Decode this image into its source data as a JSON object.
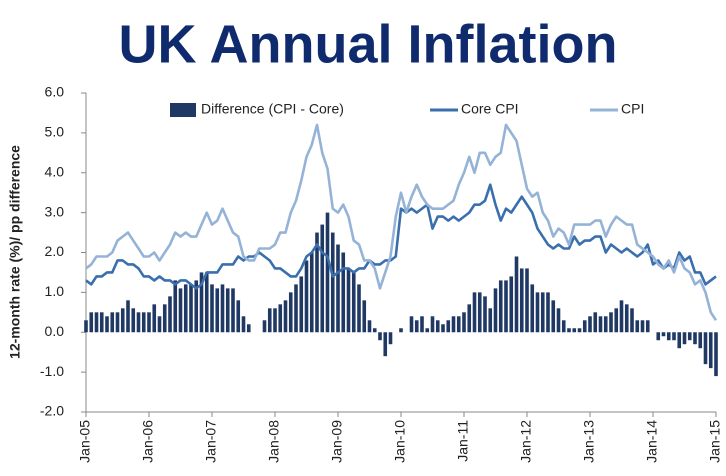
{
  "chart_data": {
    "type": "bar_line",
    "title": "UK Annual Inflation",
    "y_label": "12-month rate (%)/ pp difference",
    "categories": [
      "Jan-05",
      null,
      null,
      null,
      null,
      null,
      null,
      null,
      null,
      null,
      null,
      null,
      "Jan-06",
      null,
      null,
      null,
      null,
      null,
      null,
      null,
      null,
      null,
      null,
      null,
      "Jan-07",
      null,
      null,
      null,
      null,
      null,
      null,
      null,
      null,
      null,
      null,
      null,
      "Jan-08",
      null,
      null,
      null,
      null,
      null,
      null,
      null,
      null,
      null,
      null,
      null,
      "Jan-09",
      null,
      null,
      null,
      null,
      null,
      null,
      null,
      null,
      null,
      null,
      null,
      "Jan-10",
      null,
      null,
      null,
      null,
      null,
      null,
      null,
      null,
      null,
      null,
      null,
      "Jan-11",
      null,
      null,
      null,
      null,
      null,
      null,
      null,
      null,
      null,
      null,
      null,
      "Jan-12",
      null,
      null,
      null,
      null,
      null,
      null,
      null,
      null,
      null,
      null,
      null,
      "Jan-13",
      null,
      null,
      null,
      null,
      null,
      null,
      null,
      null,
      null,
      null,
      null,
      "Jan-14",
      null,
      null,
      null,
      null,
      null,
      null,
      null,
      null,
      null,
      null,
      null,
      "Jan-15"
    ],
    "series": [
      {
        "name": "Difference (CPI - Core)",
        "kind": "bar",
        "color": "#1f3864",
        "values": [
          0.3,
          0.5,
          0.5,
          0.5,
          0.4,
          0.5,
          0.5,
          0.6,
          0.8,
          0.6,
          0.5,
          0.5,
          0.5,
          0.7,
          0.4,
          0.7,
          0.9,
          1.3,
          1.1,
          1.2,
          1.2,
          1.3,
          1.5,
          1.5,
          1.2,
          1.1,
          1.2,
          1.1,
          1.1,
          0.8,
          0.4,
          0.2,
          0.0,
          0.0,
          0.3,
          0.6,
          0.6,
          0.7,
          0.8,
          1.0,
          1.2,
          1.4,
          1.8,
          2.0,
          2.5,
          2.7,
          3.0,
          2.5,
          2.2,
          2.0,
          1.6,
          1.5,
          1.2,
          0.8,
          0.3,
          0.1,
          -0.2,
          -0.6,
          -0.3,
          0.0,
          0.1,
          0.0,
          0.4,
          0.3,
          0.4,
          0.1,
          0.4,
          0.3,
          0.2,
          0.3,
          0.4,
          0.4,
          0.5,
          0.7,
          1.0,
          1.0,
          0.9,
          0.6,
          1.1,
          1.3,
          1.3,
          1.4,
          1.9,
          1.6,
          1.6,
          1.2,
          1.0,
          1.0,
          1.0,
          0.8,
          0.6,
          0.3,
          0.1,
          0.1,
          0.1,
          0.3,
          0.4,
          0.5,
          0.4,
          0.4,
          0.5,
          0.6,
          0.8,
          0.7,
          0.6,
          0.3,
          0.3,
          0.3,
          0.0,
          -0.2,
          -0.1,
          -0.2,
          -0.2,
          -0.4,
          -0.3,
          -0.2,
          -0.3,
          -0.4,
          -0.8,
          -0.9,
          -1.1
        ]
      },
      {
        "name": "Core CPI",
        "kind": "line",
        "color": "#3a6fad",
        "values": [
          1.3,
          1.2,
          1.4,
          1.4,
          1.5,
          1.5,
          1.8,
          1.8,
          1.7,
          1.7,
          1.6,
          1.4,
          1.4,
          1.3,
          1.4,
          1.3,
          1.3,
          1.2,
          1.3,
          1.3,
          1.2,
          1.1,
          1.2,
          1.5,
          1.5,
          1.5,
          1.7,
          1.7,
          1.7,
          1.9,
          1.8,
          1.9,
          1.9,
          2.0,
          1.9,
          1.8,
          1.6,
          1.6,
          1.5,
          1.4,
          1.4,
          1.6,
          1.9,
          2.0,
          2.2,
          2.0,
          1.9,
          1.4,
          1.5,
          1.6,
          1.6,
          1.5,
          1.6,
          1.6,
          1.8,
          1.7,
          1.7,
          1.8,
          1.8,
          1.9,
          3.1,
          3.0,
          3.1,
          3.0,
          3.1,
          3.2,
          2.6,
          2.9,
          2.9,
          2.8,
          2.9,
          2.8,
          2.9,
          3.0,
          3.2,
          3.2,
          3.3,
          3.7,
          3.2,
          2.8,
          3.1,
          3.0,
          3.2,
          3.4,
          3.2,
          3.0,
          2.6,
          2.4,
          2.2,
          2.1,
          2.2,
          2.1,
          2.1,
          2.4,
          2.2,
          2.3,
          2.3,
          2.4,
          2.4,
          2.0,
          2.2,
          2.1,
          2.0,
          2.1,
          2.0,
          1.9,
          2.0,
          2.2,
          1.7,
          1.8,
          1.6,
          1.7,
          1.6,
          2.0,
          1.8,
          1.9,
          1.5,
          1.5,
          1.2,
          1.3,
          1.4
        ]
      },
      {
        "name": "CPI",
        "kind": "line",
        "color": "#95b3d7",
        "values": [
          1.6,
          1.7,
          1.9,
          1.9,
          1.9,
          2.0,
          2.3,
          2.4,
          2.5,
          2.3,
          2.1,
          1.9,
          1.9,
          2.0,
          1.8,
          2.0,
          2.2,
          2.5,
          2.4,
          2.5,
          2.4,
          2.4,
          2.7,
          3.0,
          2.7,
          2.8,
          3.1,
          2.8,
          2.5,
          2.4,
          1.9,
          1.8,
          1.8,
          2.1,
          2.1,
          2.1,
          2.2,
          2.5,
          2.5,
          3.0,
          3.3,
          3.8,
          4.4,
          4.7,
          5.2,
          4.5,
          4.1,
          3.1,
          3.0,
          3.2,
          2.9,
          2.3,
          2.2,
          1.8,
          1.8,
          1.6,
          1.1,
          1.5,
          1.9,
          2.9,
          3.5,
          3.0,
          3.4,
          3.7,
          3.4,
          3.2,
          3.1,
          3.1,
          3.1,
          3.2,
          3.3,
          3.7,
          4.0,
          4.4,
          4.0,
          4.5,
          4.5,
          4.2,
          4.4,
          4.5,
          5.2,
          5.0,
          4.8,
          4.2,
          3.6,
          3.4,
          3.5,
          3.0,
          2.8,
          2.4,
          2.6,
          2.5,
          2.2,
          2.7,
          2.7,
          2.7,
          2.7,
          2.8,
          2.8,
          2.4,
          2.7,
          2.9,
          2.8,
          2.7,
          2.7,
          2.2,
          2.1,
          2.0,
          1.9,
          1.7,
          1.6,
          1.8,
          1.5,
          1.9,
          1.6,
          1.5,
          1.2,
          1.3,
          1.0,
          0.5,
          0.3
        ]
      }
    ],
    "ylim": [
      -2,
      6
    ],
    "yticks": [
      {
        "value": -2,
        "label": "-2.0"
      },
      {
        "value": -1,
        "label": "-1.0"
      },
      {
        "value": 0,
        "label": "0.0"
      },
      {
        "value": 1,
        "label": "1.0"
      },
      {
        "value": 2,
        "label": "2.0"
      },
      {
        "value": 3,
        "label": "3.0"
      },
      {
        "value": 4,
        "label": "4.0"
      },
      {
        "value": 5,
        "label": "5.0"
      },
      {
        "value": 6,
        "label": "6.0"
      }
    ],
    "grid": false
  }
}
